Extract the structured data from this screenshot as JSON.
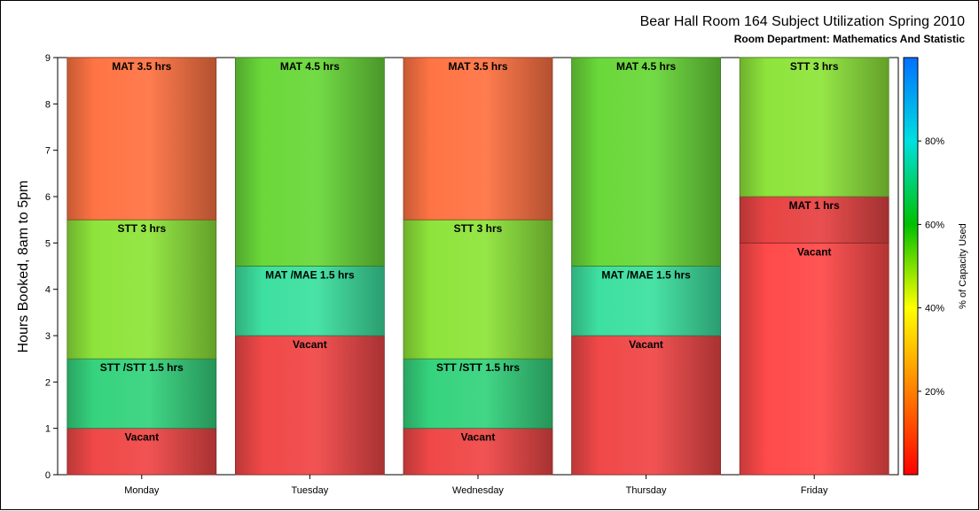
{
  "chart_data": {
    "type": "bar",
    "stacked": true,
    "title": "Bear Hall Room 164 Subject Utilization Spring 2010",
    "subtitle": "Room Department:  Mathematics And Statistic",
    "ylabel": "Hours Booked, 8am to 5pm",
    "xlabel": "",
    "ylim": [
      0,
      9
    ],
    "yticks": [
      0,
      1,
      2,
      3,
      4,
      5,
      6,
      7,
      8,
      9
    ],
    "categories": [
      "Monday",
      "Tuesday",
      "Wednesday",
      "Thursday",
      "Friday"
    ],
    "bars": [
      {
        "category": "Monday",
        "segments": [
          {
            "label": "Vacant",
            "hours": 1,
            "pct_capacity": 8,
            "color": "#f04848"
          },
          {
            "label": "STT /STT 1.5 hrs",
            "hours": 1.5,
            "pct_capacity": 72,
            "color": "#36d37e"
          },
          {
            "label": "STT 3 hrs",
            "hours": 3,
            "pct_capacity": 58,
            "color": "#8ee43b"
          },
          {
            "label": "MAT 3.5 hrs",
            "hours": 3.5,
            "pct_capacity": 28,
            "color": "#ff7444"
          }
        ]
      },
      {
        "category": "Tuesday",
        "segments": [
          {
            "label": "Vacant",
            "hours": 3,
            "pct_capacity": 8,
            "color": "#f04848"
          },
          {
            "label": "MAT /MAE 1.5 hrs",
            "hours": 1.5,
            "pct_capacity": 78,
            "color": "#3de0a0"
          },
          {
            "label": "MAT 4.5 hrs",
            "hours": 4.5,
            "pct_capacity": 64,
            "color": "#6ad83a"
          }
        ]
      },
      {
        "category": "Wednesday",
        "segments": [
          {
            "label": "Vacant",
            "hours": 1,
            "pct_capacity": 8,
            "color": "#f04848"
          },
          {
            "label": "STT /STT 1.5 hrs",
            "hours": 1.5,
            "pct_capacity": 72,
            "color": "#36d37e"
          },
          {
            "label": "STT 3 hrs",
            "hours": 3,
            "pct_capacity": 58,
            "color": "#8ee43b"
          },
          {
            "label": "MAT 3.5 hrs",
            "hours": 3.5,
            "pct_capacity": 28,
            "color": "#ff7444"
          }
        ]
      },
      {
        "category": "Thursday",
        "segments": [
          {
            "label": "Vacant",
            "hours": 3,
            "pct_capacity": 8,
            "color": "#f04848"
          },
          {
            "label": "MAT /MAE 1.5 hrs",
            "hours": 1.5,
            "pct_capacity": 78,
            "color": "#3de0a0"
          },
          {
            "label": "MAT 4.5 hrs",
            "hours": 4.5,
            "pct_capacity": 64,
            "color": "#6ad83a"
          }
        ]
      },
      {
        "category": "Friday",
        "segments": [
          {
            "label": "Vacant",
            "hours": 5,
            "pct_capacity": 6,
            "color": "#ff4a4a"
          },
          {
            "label": "MAT 1 hrs",
            "hours": 1,
            "pct_capacity": 10,
            "color": "#e84444"
          },
          {
            "label": "STT 3 hrs",
            "hours": 3,
            "pct_capacity": 58,
            "color": "#8ee43b"
          }
        ]
      }
    ],
    "colorbar": {
      "label": "% of Capacity Used",
      "ticks": [
        "20%",
        "40%",
        "60%",
        "80%"
      ],
      "tick_values": [
        20,
        40,
        60,
        80
      ],
      "range": [
        0,
        100
      ],
      "gradient": [
        "#ff0000",
        "#ff7f00",
        "#ffff00",
        "#00c000",
        "#00e0e0",
        "#0070ff"
      ]
    },
    "grid": false,
    "legend": "colorbar-right"
  }
}
